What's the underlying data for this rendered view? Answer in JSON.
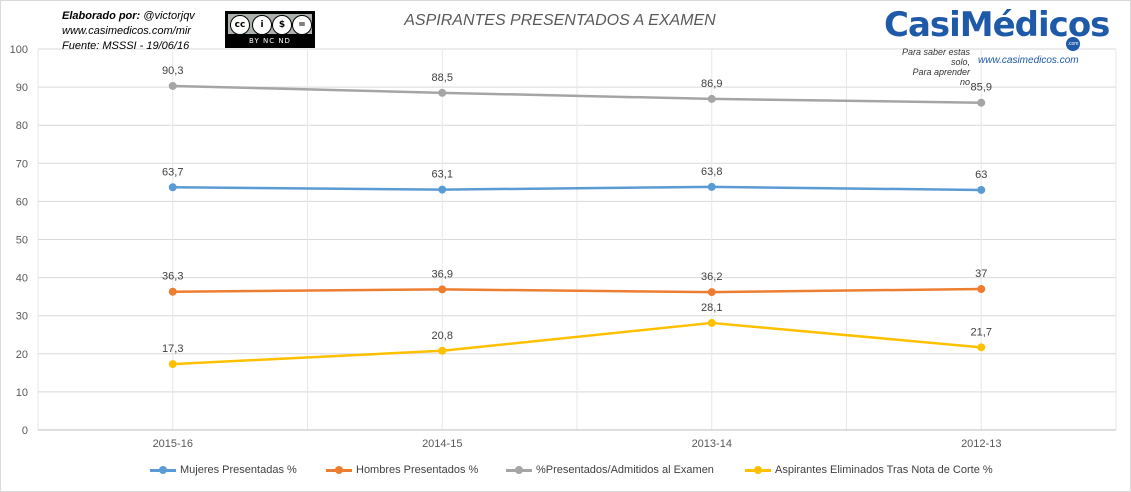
{
  "header": {
    "credit_line1_label": "Elaborado  por:",
    "credit_line1_value": "@victorjqv",
    "credit_line2": "www.casimedicos.com/mir",
    "credit_line3": "Fuente: MSSSI  - 19/06/16",
    "cc_text": "BY  NC  ND",
    "cc_icon": "cc-by-nc-nd-icon"
  },
  "logo": {
    "word": "CasiMédicos",
    "com": ".com",
    "slogan1": "Para saber estas solo,",
    "slogan2": "Para aprender no",
    "url": "www.casimedicos.com"
  },
  "chart_data": {
    "type": "line",
    "title": "ASPIRANTES PRESENTADOS A EXAMEN",
    "categories": [
      "2015-16",
      "2014-15",
      "2013-14",
      "2012-13"
    ],
    "ylim": [
      0,
      100
    ],
    "yticks": [
      0,
      10,
      20,
      30,
      40,
      50,
      60,
      70,
      80,
      90,
      100
    ],
    "grid": true,
    "legend_position": "bottom",
    "series": [
      {
        "name": "Mujeres Presentadas %",
        "values": [
          63.7,
          63.1,
          63.8,
          63
        ],
        "labels": [
          "63,7",
          "63,1",
          "63,8",
          "63"
        ],
        "color": "#5b9bd5"
      },
      {
        "name": "Hombres Presentados %",
        "values": [
          36.3,
          36.9,
          36.2,
          37
        ],
        "labels": [
          "36,3",
          "36,9",
          "36,2",
          "37"
        ],
        "color": "#ed7d31"
      },
      {
        "name": "%Presentados/Admitidos al Examen",
        "values": [
          90.3,
          88.5,
          86.9,
          85.9
        ],
        "labels": [
          "90,3",
          "88,5",
          "86,9",
          "85,9"
        ],
        "color": "#a5a5a5"
      },
      {
        "name": "Aspirantes Eliminados Tras Nota de Corte %",
        "values": [
          17.3,
          20.8,
          28.1,
          21.7
        ],
        "labels": [
          "17,3",
          "20,8",
          "28,1",
          "21,7"
        ],
        "color": "#ffc000"
      }
    ]
  }
}
